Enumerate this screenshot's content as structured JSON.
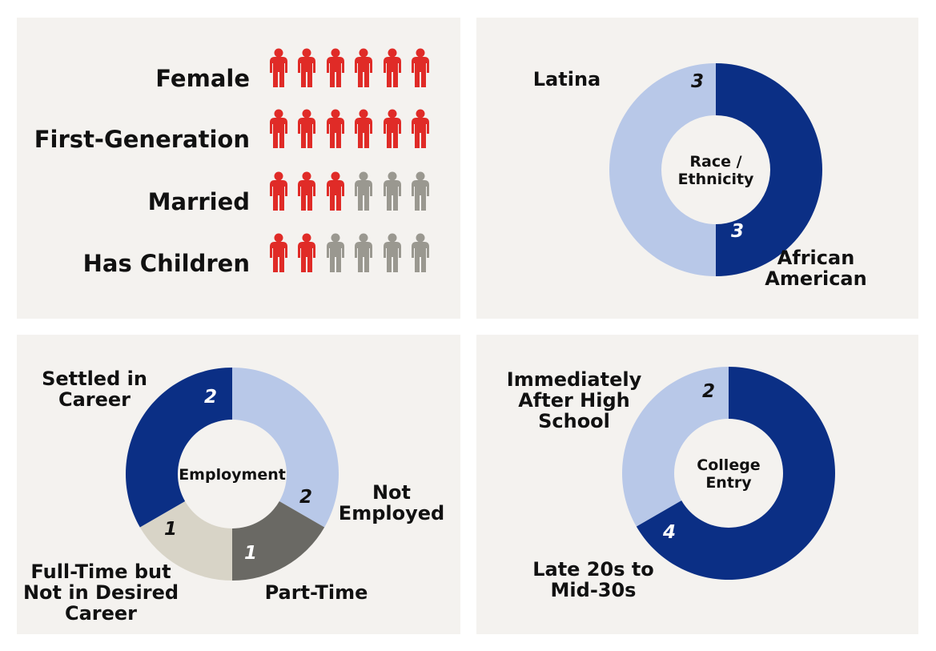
{
  "colors": {
    "panel_bg": "#f4f2ef",
    "icon_yes": "#e02b27",
    "icon_no": "#9a9890",
    "dark_blue": "#0b2f85",
    "light_blue": "#b8c8e8",
    "dark_gray": "#6a6964",
    "light_beige": "#d8d4c7"
  },
  "chart_data": [
    {
      "type": "pictogram",
      "total_per_row": 6,
      "rows": [
        {
          "label": "Female",
          "value": 6
        },
        {
          "label": "First-Generation",
          "value": 6
        },
        {
          "label": "Married",
          "value": 3
        },
        {
          "label": "Has Children",
          "value": 2
        }
      ]
    },
    {
      "type": "donut",
      "center_label": [
        "Race /",
        "Ethnicity"
      ],
      "slices": [
        {
          "label": [
            "African",
            "American"
          ],
          "value": 3,
          "color": "#0b2f85",
          "count_color": "#ffffff"
        },
        {
          "label": [
            "Latina"
          ],
          "value": 3,
          "color": "#b8c8e8",
          "count_color": "#111111"
        }
      ]
    },
    {
      "type": "donut",
      "center_label": [
        "Employment"
      ],
      "slices": [
        {
          "label": [
            "Not",
            "Employed"
          ],
          "value": 2,
          "color": "#b8c8e8",
          "count_color": "#111111"
        },
        {
          "label": [
            "Part-Time"
          ],
          "value": 1,
          "color": "#6a6964",
          "count_color": "#ffffff"
        },
        {
          "label": [
            "Full-Time but",
            "Not in Desired",
            "Career"
          ],
          "value": 1,
          "color": "#d8d4c7",
          "count_color": "#111111"
        },
        {
          "label": [
            "Settled in",
            "Career"
          ],
          "value": 2,
          "color": "#0b2f85",
          "count_color": "#ffffff"
        }
      ]
    },
    {
      "type": "donut",
      "center_label": [
        "College",
        "Entry"
      ],
      "slices": [
        {
          "label": [
            "Late 20s to",
            "Mid-30s"
          ],
          "value": 4,
          "color": "#0b2f85",
          "count_color": "#ffffff"
        },
        {
          "label": [
            "Immediately",
            "After High",
            "School"
          ],
          "value": 2,
          "color": "#b8c8e8",
          "count_color": "#111111"
        }
      ]
    }
  ]
}
